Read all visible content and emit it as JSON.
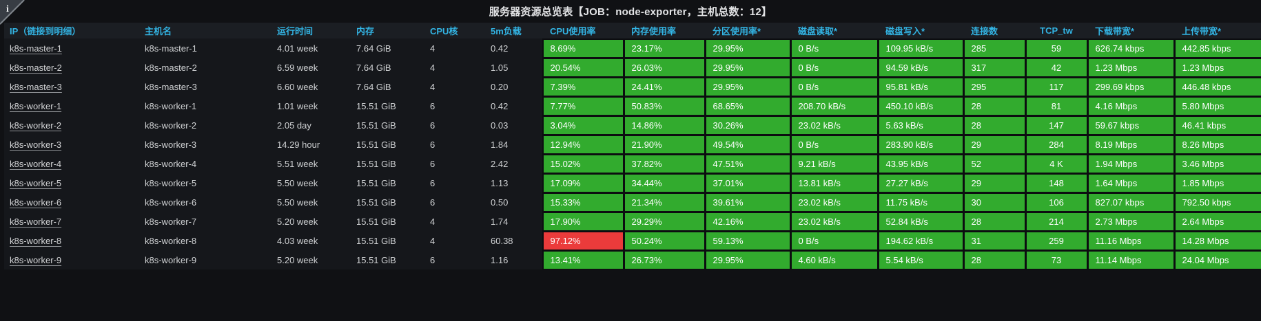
{
  "panel": {
    "title": "服务器资源总览表【JOB：node-exporter，主机总数：12】",
    "info_icon": "i"
  },
  "colors": {
    "ok_green": "#32ab2e",
    "alert_red": "#eb3b3b",
    "header_blue": "#33b5e5"
  },
  "table": {
    "columns": [
      {
        "key": "ip",
        "label": "IP（链接到明细）"
      },
      {
        "key": "hostname",
        "label": "主机名"
      },
      {
        "key": "uptime",
        "label": "运行时间"
      },
      {
        "key": "memory",
        "label": "内存"
      },
      {
        "key": "cpu_cores",
        "label": "CPU核"
      },
      {
        "key": "load_5m",
        "label": "5m负载"
      },
      {
        "key": "cpu_usage",
        "label": "CPU使用率"
      },
      {
        "key": "mem_usage",
        "label": "内存使用率"
      },
      {
        "key": "partition_usage",
        "label": "分区使用率*"
      },
      {
        "key": "disk_read",
        "label": "磁盘读取*"
      },
      {
        "key": "disk_write",
        "label": "磁盘写入*"
      },
      {
        "key": "connections",
        "label": "连接数"
      },
      {
        "key": "tcp_tw",
        "label": "TCP_tw"
      },
      {
        "key": "download_bw",
        "label": "下载带宽*"
      },
      {
        "key": "upload_bw",
        "label": "上传带宽*"
      }
    ],
    "rows": [
      {
        "ip": "k8s-master-1",
        "hostname": "k8s-master-1",
        "uptime": "4.01 week",
        "memory": "7.64 GiB",
        "cpu_cores": "4",
        "load_5m": "0.42",
        "cpu_usage": "8.69%",
        "mem_usage": "23.17%",
        "partition_usage": "29.95%",
        "disk_read": "0 B/s",
        "disk_write": "109.95 kB/s",
        "connections": "285",
        "tcp_tw": "59",
        "download_bw": "626.74 kbps",
        "upload_bw": "442.85 kbps",
        "cpu_alert": false
      },
      {
        "ip": "k8s-master-2",
        "hostname": "k8s-master-2",
        "uptime": "6.59 week",
        "memory": "7.64 GiB",
        "cpu_cores": "4",
        "load_5m": "1.05",
        "cpu_usage": "20.54%",
        "mem_usage": "26.03%",
        "partition_usage": "29.95%",
        "disk_read": "0 B/s",
        "disk_write": "94.59 kB/s",
        "connections": "317",
        "tcp_tw": "42",
        "download_bw": "1.23 Mbps",
        "upload_bw": "1.23 Mbps",
        "cpu_alert": false
      },
      {
        "ip": "k8s-master-3",
        "hostname": "k8s-master-3",
        "uptime": "6.60 week",
        "memory": "7.64 GiB",
        "cpu_cores": "4",
        "load_5m": "0.20",
        "cpu_usage": "7.39%",
        "mem_usage": "24.41%",
        "partition_usage": "29.95%",
        "disk_read": "0 B/s",
        "disk_write": "95.81 kB/s",
        "connections": "295",
        "tcp_tw": "117",
        "download_bw": "299.69 kbps",
        "upload_bw": "446.48 kbps",
        "cpu_alert": false
      },
      {
        "ip": "k8s-worker-1",
        "hostname": "k8s-worker-1",
        "uptime": "1.01 week",
        "memory": "15.51 GiB",
        "cpu_cores": "6",
        "load_5m": "0.42",
        "cpu_usage": "7.77%",
        "mem_usage": "50.83%",
        "partition_usage": "68.65%",
        "disk_read": "208.70 kB/s",
        "disk_write": "450.10 kB/s",
        "connections": "28",
        "tcp_tw": "81",
        "download_bw": "4.16 Mbps",
        "upload_bw": "5.80 Mbps",
        "cpu_alert": false
      },
      {
        "ip": "k8s-worker-2",
        "hostname": "k8s-worker-2",
        "uptime": "2.05 day",
        "memory": "15.51 GiB",
        "cpu_cores": "6",
        "load_5m": "0.03",
        "cpu_usage": "3.04%",
        "mem_usage": "14.86%",
        "partition_usage": "30.26%",
        "disk_read": "23.02 kB/s",
        "disk_write": "5.63 kB/s",
        "connections": "28",
        "tcp_tw": "147",
        "download_bw": "59.67 kbps",
        "upload_bw": "46.41 kbps",
        "cpu_alert": false
      },
      {
        "ip": "k8s-worker-3",
        "hostname": "k8s-worker-3",
        "uptime": "14.29 hour",
        "memory": "15.51 GiB",
        "cpu_cores": "6",
        "load_5m": "1.84",
        "cpu_usage": "12.94%",
        "mem_usage": "21.90%",
        "partition_usage": "49.54%",
        "disk_read": "0 B/s",
        "disk_write": "283.90 kB/s",
        "connections": "29",
        "tcp_tw": "284",
        "download_bw": "8.19 Mbps",
        "upload_bw": "8.26 Mbps",
        "cpu_alert": false
      },
      {
        "ip": "k8s-worker-4",
        "hostname": "k8s-worker-4",
        "uptime": "5.51 week",
        "memory": "15.51 GiB",
        "cpu_cores": "6",
        "load_5m": "2.42",
        "cpu_usage": "15.02%",
        "mem_usage": "37.82%",
        "partition_usage": "47.51%",
        "disk_read": "9.21 kB/s",
        "disk_write": "43.95 kB/s",
        "connections": "52",
        "tcp_tw": "4 K",
        "download_bw": "1.94 Mbps",
        "upload_bw": "3.46 Mbps",
        "cpu_alert": false
      },
      {
        "ip": "k8s-worker-5",
        "hostname": "k8s-worker-5",
        "uptime": "5.50 week",
        "memory": "15.51 GiB",
        "cpu_cores": "6",
        "load_5m": "1.13",
        "cpu_usage": "17.09%",
        "mem_usage": "34.44%",
        "partition_usage": "37.01%",
        "disk_read": "13.81 kB/s",
        "disk_write": "27.27 kB/s",
        "connections": "29",
        "tcp_tw": "148",
        "download_bw": "1.64 Mbps",
        "upload_bw": "1.85 Mbps",
        "cpu_alert": false
      },
      {
        "ip": "k8s-worker-6",
        "hostname": "k8s-worker-6",
        "uptime": "5.50 week",
        "memory": "15.51 GiB",
        "cpu_cores": "6",
        "load_5m": "0.50",
        "cpu_usage": "15.33%",
        "mem_usage": "21.34%",
        "partition_usage": "39.61%",
        "disk_read": "23.02 kB/s",
        "disk_write": "11.75 kB/s",
        "connections": "30",
        "tcp_tw": "106",
        "download_bw": "827.07 kbps",
        "upload_bw": "792.50 kbps",
        "cpu_alert": false
      },
      {
        "ip": "k8s-worker-7",
        "hostname": "k8s-worker-7",
        "uptime": "5.20 week",
        "memory": "15.51 GiB",
        "cpu_cores": "4",
        "load_5m": "1.74",
        "cpu_usage": "17.90%",
        "mem_usage": "29.29%",
        "partition_usage": "42.16%",
        "disk_read": "23.02 kB/s",
        "disk_write": "52.84 kB/s",
        "connections": "28",
        "tcp_tw": "214",
        "download_bw": "2.73 Mbps",
        "upload_bw": "2.64 Mbps",
        "cpu_alert": false
      },
      {
        "ip": "k8s-worker-8",
        "hostname": "k8s-worker-8",
        "uptime": "4.03 week",
        "memory": "15.51 GiB",
        "cpu_cores": "4",
        "load_5m": "60.38",
        "cpu_usage": "97.12%",
        "mem_usage": "50.24%",
        "partition_usage": "59.13%",
        "disk_read": "0 B/s",
        "disk_write": "194.62 kB/s",
        "connections": "31",
        "tcp_tw": "259",
        "download_bw": "11.16 Mbps",
        "upload_bw": "14.28 Mbps",
        "cpu_alert": true
      },
      {
        "ip": "k8s-worker-9",
        "hostname": "k8s-worker-9",
        "uptime": "5.20 week",
        "memory": "15.51 GiB",
        "cpu_cores": "6",
        "load_5m": "1.16",
        "cpu_usage": "13.41%",
        "mem_usage": "26.73%",
        "partition_usage": "29.95%",
        "disk_read": "4.60 kB/s",
        "disk_write": "5.54 kB/s",
        "connections": "28",
        "tcp_tw": "73",
        "download_bw": "11.14 Mbps",
        "upload_bw": "24.04 Mbps",
        "cpu_alert": false
      }
    ]
  }
}
